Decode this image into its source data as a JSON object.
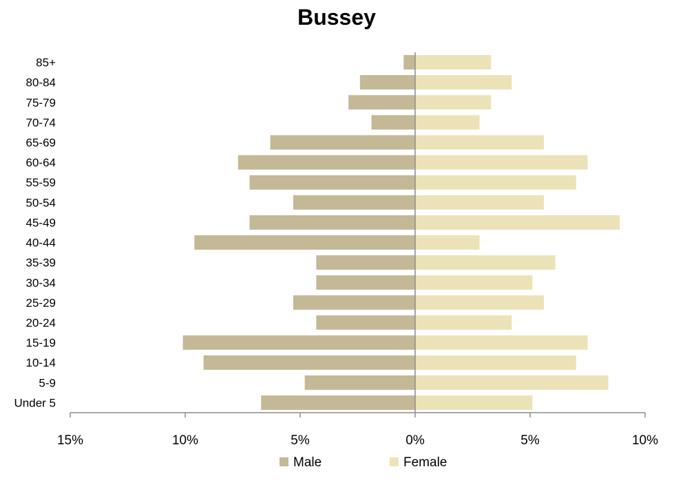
{
  "chart_data": {
    "type": "bar",
    "orientation": "horizontal",
    "subtype": "population-pyramid",
    "title": "Bussey",
    "categories": [
      "85+",
      "80-84",
      "75-79",
      "70-74",
      "65-69",
      "60-64",
      "55-59",
      "50-54",
      "45-49",
      "40-44",
      "35-39",
      "30-34",
      "25-29",
      "20-24",
      "15-19",
      "10-14",
      "5-9",
      "Under 5"
    ],
    "series": [
      {
        "name": "Male",
        "color": "#c4b896",
        "values": [
          -0.5,
          -2.4,
          -2.9,
          -1.9,
          -6.3,
          -7.7,
          -7.2,
          -5.3,
          -7.2,
          -9.6,
          -4.3,
          -4.3,
          -5.3,
          -4.3,
          -10.1,
          -9.2,
          -4.8,
          -6.7
        ]
      },
      {
        "name": "Female",
        "color": "#ebe3b7",
        "values": [
          3.3,
          4.2,
          3.3,
          2.8,
          5.6,
          7.5,
          7.0,
          5.6,
          8.9,
          2.8,
          6.1,
          5.1,
          5.6,
          4.2,
          7.5,
          7.0,
          8.4,
          5.1
        ]
      }
    ],
    "xlim": [
      -15,
      10
    ],
    "xticks": [
      -15,
      -10,
      -5,
      0,
      5,
      10
    ],
    "xtick_labels": [
      "15%",
      "10%",
      "5%",
      "0%",
      "5%",
      "10%"
    ],
    "xlabel": "",
    "ylabel": "",
    "grid": false,
    "legend_position": "bottom"
  }
}
